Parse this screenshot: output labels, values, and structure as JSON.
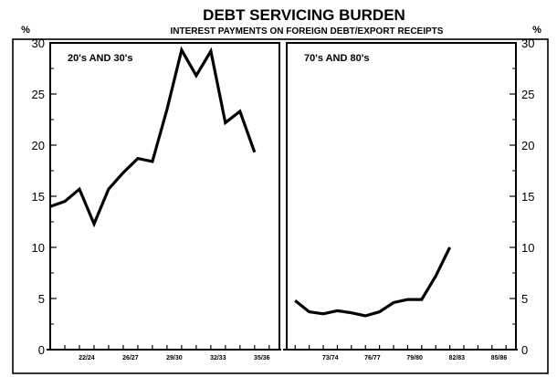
{
  "chart_data": {
    "type": "line",
    "title": "DEBT SERVICING BURDEN",
    "subtitle": "INTEREST PAYMENTS ON FOREIGN DEBT/EXPORT RECEIPTS",
    "ylabel_left": "%",
    "ylabel_right": "%",
    "ylim": [
      0,
      30
    ],
    "yticks": [
      0,
      5,
      10,
      15,
      20,
      25,
      30
    ],
    "panels": [
      {
        "label": "20's AND 30's",
        "xticks": [
          "22/24",
          "26/27",
          "29/30",
          "32/33",
          "35/36"
        ],
        "series": [
          {
            "x": [
              1920,
              1921,
              1922,
              1923,
              1924,
              1925,
              1926,
              1927,
              1928,
              1929,
              1930,
              1931,
              1932,
              1933,
              1934,
              1935
            ],
            "values": [
              14.0,
              14.5,
              15.7,
              12.3,
              15.7,
              17.3,
              18.7,
              18.4,
              23.5,
              29.3,
              26.8,
              29.2,
              22.2,
              23.3,
              19.3,
              null
            ]
          }
        ]
      },
      {
        "label": "70's AND 80's",
        "xticks": [
          "73/74",
          "76/77",
          "79/80",
          "82/83",
          "85/86"
        ],
        "series": [
          {
            "x": [
              1970,
              1971,
              1972,
              1973,
              1974,
              1975,
              1976,
              1977,
              1978,
              1979,
              1980,
              1981,
              1982
            ],
            "values": [
              4.8,
              3.7,
              3.5,
              3.8,
              3.6,
              3.3,
              3.7,
              4.6,
              4.9,
              4.9,
              7.2,
              10.0,
              null
            ]
          }
        ]
      }
    ]
  }
}
